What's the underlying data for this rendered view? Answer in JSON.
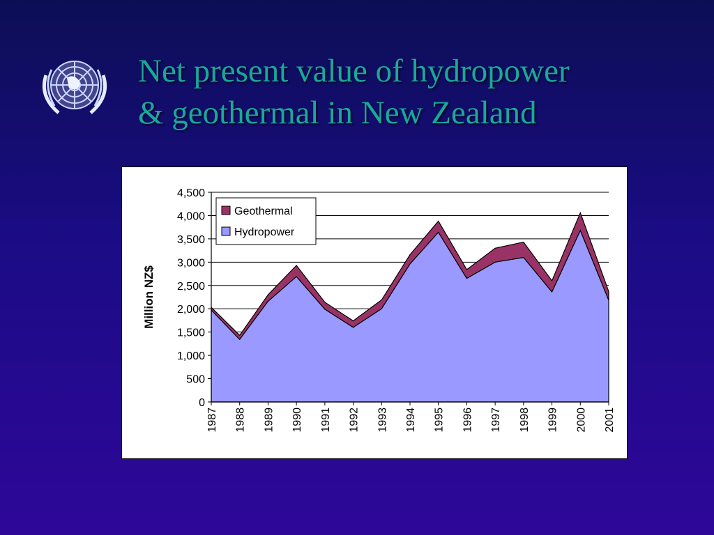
{
  "slide": {
    "title_line1": "Net present value of hydropower",
    "title_line2": "& geothermal in New Zealand"
  },
  "logo": {
    "name": "un-emblem-icon"
  },
  "colors": {
    "background_top": "#0c0e55",
    "background_bottom": "#2e0799",
    "title": "#1aa89a",
    "hydropower": "#9999ff",
    "geothermal": "#993366"
  },
  "chart_data": {
    "type": "area",
    "stacked": true,
    "ylabel": "Million NZ$",
    "xlabel": "",
    "ylim": [
      0,
      4500
    ],
    "yticks": [
      "0",
      "500",
      "1,000",
      "1,500",
      "2,000",
      "2,500",
      "3,000",
      "3,500",
      "4,000",
      "4,500"
    ],
    "ytick_values": [
      0,
      500,
      1000,
      1500,
      2000,
      2500,
      3000,
      3500,
      4000,
      4500
    ],
    "categories": [
      "1987",
      "1988",
      "1989",
      "1990",
      "1991",
      "1992",
      "1993",
      "1994",
      "1995",
      "1996",
      "1997",
      "1998",
      "1999",
      "2000",
      "2001"
    ],
    "grid": true,
    "legend_position": "top-left",
    "series": [
      {
        "name": "Hydropower",
        "color": "#9999ff",
        "values": [
          1970,
          1340,
          2160,
          2690,
          1990,
          1600,
          2000,
          2960,
          3640,
          2650,
          3000,
          3100,
          2360,
          3680,
          2180
        ]
      },
      {
        "name": "Geothermal",
        "color": "#993366",
        "values": [
          60,
          90,
          140,
          240,
          150,
          140,
          190,
          200,
          240,
          190,
          300,
          330,
          240,
          380,
          190
        ]
      }
    ],
    "legend": [
      "Geothermal",
      "Hydropower"
    ]
  }
}
